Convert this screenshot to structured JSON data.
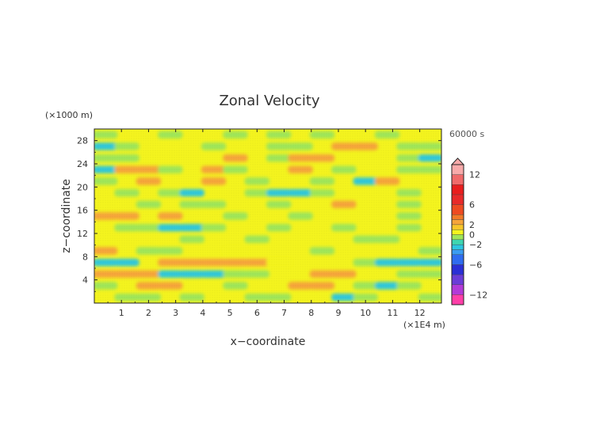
{
  "chart_data": {
    "type": "heatmap",
    "title": "Zonal Velocity",
    "xlabel": "x−coordinate",
    "ylabel": "z−coordinate",
    "x_unit": "(×1E4 m)",
    "y_unit": "(×1000 m)",
    "time_label": "60000 s",
    "xlim": [
      0,
      12.8
    ],
    "ylim": [
      0,
      30
    ],
    "x_ticks": [
      1,
      2,
      3,
      4,
      5,
      6,
      7,
      8,
      9,
      10,
      11,
      12
    ],
    "y_ticks": [
      4,
      8,
      12,
      16,
      20,
      24,
      28
    ],
    "colorbar": {
      "tick_values": [
        12,
        6,
        2,
        0,
        -2,
        -6,
        -12
      ],
      "tick_labels": [
        "12",
        "6",
        "2",
        "0",
        "−2",
        "−6",
        "−12"
      ],
      "range": [
        -14,
        14
      ],
      "levels": [
        {
          "from": -14,
          "to": -12,
          "color": "#ff3fa8"
        },
        {
          "from": -12,
          "to": -10,
          "color": "#b23ad8"
        },
        {
          "from": -10,
          "to": -8,
          "color": "#6a3cd8"
        },
        {
          "from": -8,
          "to": -6,
          "color": "#2a2fd6"
        },
        {
          "from": -6,
          "to": -4,
          "color": "#2f6cf0"
        },
        {
          "from": -4,
          "to": -3,
          "color": "#3a9cf2"
        },
        {
          "from": -3,
          "to": -2,
          "color": "#2cc6e0"
        },
        {
          "from": -2,
          "to": -1,
          "color": "#3ed6b0"
        },
        {
          "from": -1,
          "to": 0,
          "color": "#9ee65a"
        },
        {
          "from": 0,
          "to": 1,
          "color": "#f4f41e"
        },
        {
          "from": 1,
          "to": 2,
          "color": "#f8c62a"
        },
        {
          "from": 2,
          "to": 3,
          "color": "#f6a43a"
        },
        {
          "from": 3,
          "to": 4,
          "color": "#f27a28"
        },
        {
          "from": 4,
          "to": 6,
          "color": "#ee4a22"
        },
        {
          "from": 6,
          "to": 8,
          "color": "#e82a2a"
        },
        {
          "from": 8,
          "to": 10,
          "color": "#e81e1e"
        },
        {
          "from": 10,
          "to": 12,
          "color": "#f06a6a"
        },
        {
          "from": 12,
          "to": 14,
          "color": "#f8aaaa"
        }
      ]
    },
    "heatmap_colors": {
      "neg_strong": "#2ec8dc",
      "neg": "#9ee65a",
      "zero": "#f4f41e",
      "pos": "#f6a43a"
    },
    "z_levels_km": [
      1,
      3,
      5,
      7,
      9,
      11,
      13,
      15,
      17,
      19,
      21,
      23,
      25,
      27,
      29
    ],
    "x_positions_1e4m": [
      0.4,
      1.2,
      2.0,
      2.8,
      3.6,
      4.4,
      5.2,
      6.0,
      6.8,
      7.6,
      8.4,
      9.2,
      10.0,
      10.8,
      11.6,
      12.4
    ],
    "u_values_ms": [
      [
        0,
        -1,
        -1,
        0,
        -1,
        0,
        0,
        -1,
        -1,
        0,
        0,
        -2,
        -1,
        0,
        0,
        -1
      ],
      [
        -1,
        0,
        2,
        2,
        0,
        0,
        -1,
        0,
        0,
        2,
        2,
        0,
        -1,
        -2,
        -1,
        0
      ],
      [
        2,
        2,
        2,
        -2,
        -2,
        -2,
        -1,
        -1,
        0,
        0,
        2,
        2,
        0,
        0,
        -1,
        -1
      ],
      [
        -2,
        -2,
        0,
        2,
        2,
        2,
        2,
        2,
        1,
        0,
        0,
        0,
        -1,
        -2,
        -2,
        -2
      ],
      [
        2,
        0,
        -1,
        -1,
        0,
        0,
        1,
        0,
        0,
        0,
        -1,
        0,
        0,
        0,
        0,
        -1
      ],
      [
        0,
        0,
        0,
        0,
        -1,
        0,
        0,
        -1,
        0,
        0,
        0,
        0,
        -1,
        -1,
        0,
        0
      ],
      [
        0,
        -1,
        -1,
        -2,
        -2,
        -1,
        0,
        0,
        -1,
        0,
        0,
        -1,
        0,
        0,
        -1,
        0
      ],
      [
        2,
        2,
        0,
        2,
        0,
        0,
        -1,
        0,
        0,
        -1,
        0,
        0,
        0,
        0,
        -1,
        0
      ],
      [
        0,
        0,
        -1,
        0,
        -1,
        -1,
        0,
        0,
        -1,
        0,
        0,
        2,
        0,
        0,
        -1,
        0
      ],
      [
        0,
        -1,
        0,
        -1,
        -2,
        0,
        0,
        -1,
        -2,
        -2,
        -1,
        0,
        0,
        0,
        -1,
        0
      ],
      [
        -1,
        0,
        2,
        0,
        0,
        2,
        0,
        -1,
        0,
        0,
        -1,
        0,
        -2,
        2,
        0,
        0
      ],
      [
        -2,
        2,
        2,
        -1,
        0,
        2,
        -1,
        0,
        0,
        2,
        0,
        -1,
        0,
        0,
        -1,
        -1
      ],
      [
        -1,
        -1,
        0,
        0,
        0,
        0,
        2,
        0,
        -1,
        2,
        2,
        0,
        0,
        0,
        -1,
        -2
      ],
      [
        -2,
        -1,
        0,
        0,
        0,
        -1,
        0,
        0,
        -1,
        -1,
        0,
        2,
        2,
        0,
        -1,
        -1
      ],
      [
        -1,
        0,
        0,
        -1,
        0,
        0,
        -1,
        0,
        -1,
        0,
        -1,
        0,
        0,
        -1,
        0,
        0
      ]
    ]
  }
}
